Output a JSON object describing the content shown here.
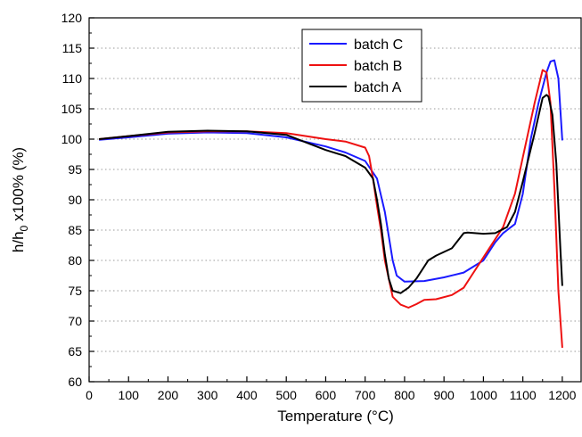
{
  "chart_data": {
    "type": "line",
    "title": "",
    "xlabel": "Temperature (°C)",
    "ylabel_main": "h/h",
    "ylabel_sub": "0",
    "ylabel_rest": " x100% (%)",
    "xlim": [
      0,
      1250
    ],
    "ylim": [
      60,
      120
    ],
    "x_ticks": [
      0,
      100,
      200,
      300,
      400,
      500,
      600,
      700,
      800,
      900,
      1000,
      1100,
      1200
    ],
    "y_ticks": [
      60,
      65,
      70,
      75,
      80,
      85,
      90,
      95,
      100,
      105,
      110,
      115,
      120
    ],
    "grid": "horizontal dotted",
    "legend_position": "top-center",
    "series": [
      {
        "name": "batch C",
        "color": "#1a1aff",
        "x": [
          25,
          100,
          200,
          300,
          400,
          500,
          600,
          650,
          700,
          730,
          750,
          760,
          770,
          780,
          800,
          850,
          900,
          950,
          1000,
          1030,
          1050,
          1080,
          1100,
          1120,
          1140,
          1160,
          1170,
          1180,
          1190,
          1200
        ],
        "y": [
          99.9,
          100.3,
          100.9,
          101.1,
          101.0,
          100.3,
          98.8,
          97.8,
          96.4,
          93.5,
          88.0,
          84.0,
          80.0,
          77.5,
          76.5,
          76.6,
          77.2,
          78.0,
          80.0,
          83.0,
          84.5,
          86.0,
          91.0,
          100.0,
          106.0,
          111.0,
          112.8,
          113.0,
          110.0,
          99.8
        ]
      },
      {
        "name": "batch B",
        "color": "#ee1111",
        "x": [
          25,
          100,
          200,
          300,
          400,
          500,
          600,
          650,
          700,
          710,
          720,
          730,
          740,
          750,
          770,
          790,
          810,
          830,
          850,
          880,
          920,
          950,
          970,
          1000,
          1050,
          1080,
          1100,
          1130,
          1150,
          1160,
          1170,
          1180,
          1190,
          1200
        ],
        "y": [
          100.0,
          100.5,
          101.1,
          101.3,
          101.3,
          101.0,
          100.0,
          99.6,
          98.6,
          97.2,
          93.5,
          89.0,
          85.0,
          80.0,
          74.0,
          72.7,
          72.2,
          72.8,
          73.5,
          73.6,
          74.3,
          75.5,
          77.5,
          80.5,
          85.5,
          91.0,
          97.0,
          106.0,
          111.4,
          111.0,
          106.0,
          92.0,
          75.0,
          65.6
        ]
      },
      {
        "name": "batch A",
        "color": "#000000",
        "x": [
          25,
          100,
          200,
          300,
          400,
          500,
          600,
          650,
          700,
          720,
          730,
          740,
          750,
          760,
          770,
          790,
          810,
          830,
          860,
          880,
          920,
          950,
          960,
          1000,
          1030,
          1060,
          1080,
          1100,
          1130,
          1150,
          1160,
          1165,
          1175,
          1185,
          1195,
          1200
        ],
        "y": [
          100.0,
          100.5,
          101.2,
          101.4,
          101.3,
          100.7,
          98.2,
          97.2,
          95.3,
          93.5,
          90.0,
          86.0,
          81.0,
          77.0,
          75.0,
          74.6,
          75.5,
          77.0,
          80.0,
          80.8,
          82.0,
          84.5,
          84.6,
          84.4,
          84.5,
          85.5,
          88.0,
          93.0,
          101.0,
          106.8,
          107.3,
          107.0,
          104.0,
          96.0,
          82.0,
          75.8
        ]
      }
    ]
  }
}
